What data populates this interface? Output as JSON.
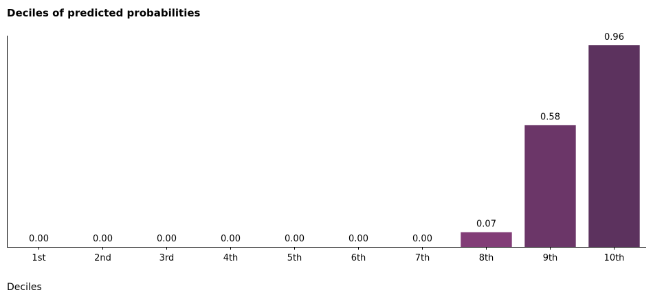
{
  "chart_data": {
    "type": "bar",
    "title": "Deciles of predicted probabilities",
    "xlabel": "Deciles",
    "ylabel": "",
    "categories": [
      "1st",
      "2nd",
      "3rd",
      "4th",
      "5th",
      "6th",
      "7th",
      "8th",
      "9th",
      "10th"
    ],
    "values": [
      0.0,
      0.0,
      0.0,
      0.0,
      0.0,
      0.0,
      0.0,
      0.07,
      0.58,
      0.96
    ],
    "data_labels": [
      "0.00",
      "0.00",
      "0.00",
      "0.00",
      "0.00",
      "0.00",
      "0.00",
      "0.07",
      "0.58",
      "0.96"
    ],
    "bar_colors": [
      "#e8a0a0",
      "#e39a9e",
      "#d98f9c",
      "#cc8198",
      "#bb7195",
      "#a86091",
      "#964f8b",
      "#823d77",
      "#6b3668",
      "#5c325e"
    ],
    "ylim": [
      0,
      1.0
    ],
    "grid": false,
    "legend": "none",
    "y_axis_ticks_shown": false
  }
}
